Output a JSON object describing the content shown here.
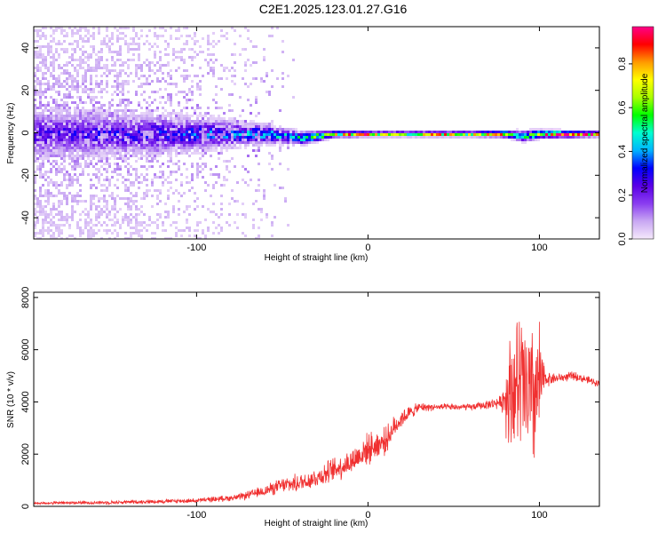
{
  "title": "C2E1.2025.123.01.27.G16",
  "chart_data": [
    {
      "type": "heatmap",
      "xlabel": "Height of straight line (km)",
      "ylabel": "Frequency (Hz)",
      "xlim": [
        -195,
        135
      ],
      "ylim": [
        -50,
        50
      ],
      "xticks": [
        -100,
        0,
        100
      ],
      "yticks": [
        -40,
        -20,
        0,
        20,
        40
      ],
      "colorbar": {
        "label": "Normalized spectral amplitude",
        "range": [
          0,
          0.97
        ],
        "ticks": [
          0.0,
          0.2,
          0.4,
          0.6,
          0.8
        ]
      },
      "ridge": {
        "description_points_x": [
          -195,
          -120,
          -60,
          -40,
          -20,
          0,
          20,
          60,
          80,
          90,
          100,
          135
        ],
        "center_hz": [
          0,
          0,
          0,
          -2,
          0,
          0,
          0,
          0,
          0,
          -1,
          0,
          0
        ],
        "halfwidth_hz": [
          18,
          15,
          7,
          5,
          2.5,
          2,
          2,
          2,
          2.5,
          4,
          3,
          2
        ],
        "peak_amplitude": [
          0.25,
          0.3,
          0.45,
          0.5,
          0.75,
          0.9,
          0.75,
          0.8,
          0.8,
          0.5,
          0.85,
          0.95
        ]
      }
    },
    {
      "type": "line",
      "xlabel": "Height of straight line (km)",
      "ylabel": "SNR (10 * v/v)",
      "xlim": [
        -195,
        135
      ],
      "ylim": [
        0,
        8200
      ],
      "xticks": [
        -100,
        0,
        100
      ],
      "yticks": [
        0,
        2000,
        4000,
        6000,
        8000
      ],
      "color": "#f03030",
      "series": [
        {
          "x": [
            -195,
            -150,
            -100,
            -75,
            -60,
            -50,
            -40,
            -30,
            -20,
            -10,
            0,
            10,
            15,
            20,
            25,
            30,
            40,
            50,
            60,
            70,
            78,
            82,
            86,
            90,
            95,
            100,
            103,
            110,
            120,
            135
          ],
          "y": [
            120,
            150,
            220,
            350,
            600,
            800,
            900,
            1100,
            1400,
            1700,
            2200,
            2500,
            3000,
            3400,
            3600,
            3800,
            3800,
            3800,
            3800,
            3900,
            4000,
            4400,
            4600,
            4600,
            4000,
            4600,
            4900,
            4900,
            5000,
            4700
          ],
          "noise_amplitude": [
            60,
            80,
            100,
            150,
            250,
            350,
            400,
            450,
            550,
            600,
            700,
            600,
            500,
            400,
            300,
            200,
            150,
            150,
            150,
            200,
            300,
            2500,
            3000,
            3500,
            3500,
            3000,
            400,
            200,
            200,
            150
          ]
        }
      ]
    }
  ],
  "colors": {
    "line": "#f03030",
    "colormap": [
      "#f5e9fb",
      "#c9a8f3",
      "#8a3df0",
      "#5a00e6",
      "#0000ff",
      "#00b4ff",
      "#00ffd0",
      "#00ff00",
      "#aaff00",
      "#ffff00",
      "#ff9900",
      "#ff0000",
      "#ff0088"
    ]
  }
}
